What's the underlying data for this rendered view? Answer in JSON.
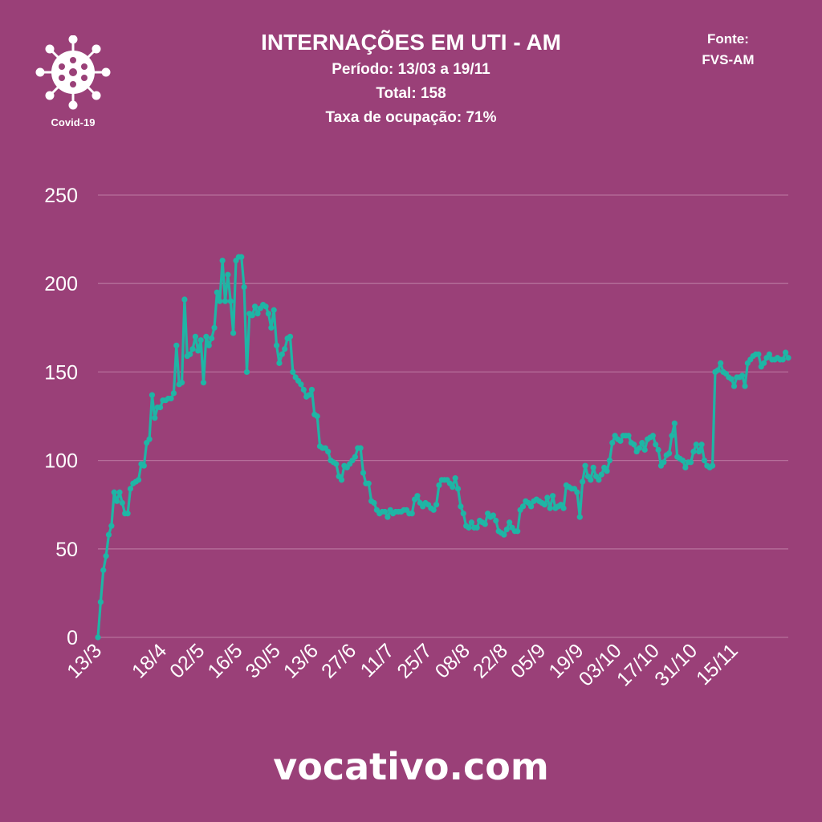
{
  "logo": {
    "label": "Covid-19",
    "icon": "virus-icon"
  },
  "header": {
    "title": "INTERNAÇÕES EM UTI - AM",
    "period": "Período: 13/03 a 19/11",
    "total": "Total: 158",
    "occupancy": "Taxa de ocupação: 71%"
  },
  "source": {
    "label": "Fonte:",
    "name": "FVS-AM"
  },
  "footer": {
    "site": "vocativo.com"
  },
  "colors": {
    "background": "#9a4078",
    "line": "#1fb5a5",
    "grid": "#b66f9b",
    "text": "#ffffff"
  },
  "chart_data": {
    "type": "line",
    "title": "INTERNAÇÕES EM UTI - AM",
    "xlabel": "",
    "ylabel": "",
    "ylim": [
      0,
      250
    ],
    "yticks": [
      0,
      50,
      100,
      150,
      200,
      250
    ],
    "grid": true,
    "xtick_labels": [
      "13/3",
      "18/4",
      "02/5",
      "16/5",
      "30/5",
      "13/6",
      "27/6",
      "11/7",
      "25/7",
      "08/8",
      "22/8",
      "05/9",
      "19/9",
      "03/10",
      "17/10",
      "31/10",
      "15/11"
    ],
    "xtick_index": [
      0,
      24,
      38,
      52,
      66,
      80,
      94,
      108,
      122,
      136,
      150,
      164,
      178,
      192,
      206,
      220,
      235
    ],
    "series": [
      {
        "values": [
          0,
          20,
          38,
          46,
          58,
          63,
          82,
          77,
          82,
          76,
          70,
          70,
          84,
          87,
          88,
          89,
          98,
          97,
          110,
          112,
          137,
          124,
          130,
          130,
          134,
          134,
          135,
          135,
          138,
          165,
          143,
          144,
          191,
          159,
          160,
          163,
          170,
          162,
          168,
          144,
          170,
          165,
          169,
          175,
          195,
          190,
          213,
          190,
          205,
          190,
          172,
          213,
          215,
          215,
          198,
          150,
          183,
          182,
          187,
          183,
          186,
          188,
          187,
          183,
          175,
          185,
          165,
          155,
          160,
          163,
          169,
          170,
          150,
          147,
          145,
          143,
          140,
          136,
          137,
          140,
          126,
          125,
          108,
          107,
          107,
          105,
          100,
          99,
          98,
          91,
          89,
          97,
          96,
          98,
          100,
          102,
          107,
          107,
          93,
          87,
          87,
          77,
          76,
          72,
          70,
          71,
          71,
          68,
          72,
          70,
          71,
          71,
          71,
          72,
          72,
          70,
          70,
          78,
          80,
          76,
          74,
          76,
          75,
          73,
          72,
          75,
          86,
          89,
          89,
          89,
          87,
          85,
          90,
          84,
          74,
          70,
          63,
          62,
          65,
          62,
          62,
          66,
          65,
          64,
          70,
          68,
          69,
          66,
          60,
          59,
          58,
          61,
          65,
          62,
          60,
          60,
          72,
          74,
          77,
          76,
          74,
          77,
          78,
          77,
          76,
          75,
          79,
          73,
          80,
          73,
          74,
          75,
          73,
          86,
          85,
          84,
          84,
          82,
          68,
          88,
          97,
          91,
          89,
          96,
          91,
          89,
          92,
          96,
          94,
          100,
          110,
          114,
          112,
          111,
          114,
          114,
          114,
          110,
          109,
          105,
          107,
          110,
          106,
          112,
          113,
          114,
          109,
          106,
          97,
          99,
          103,
          104,
          114,
          121,
          102,
          101,
          100,
          96,
          99,
          99,
          105,
          109,
          105,
          109,
          100,
          97,
          96,
          97,
          150,
          151,
          155,
          150,
          149,
          147,
          146,
          142,
          147,
          147,
          148,
          142,
          155,
          157,
          159,
          160,
          160,
          153,
          155,
          158,
          160,
          157,
          157,
          158,
          157,
          157,
          161,
          158
        ]
      }
    ]
  }
}
